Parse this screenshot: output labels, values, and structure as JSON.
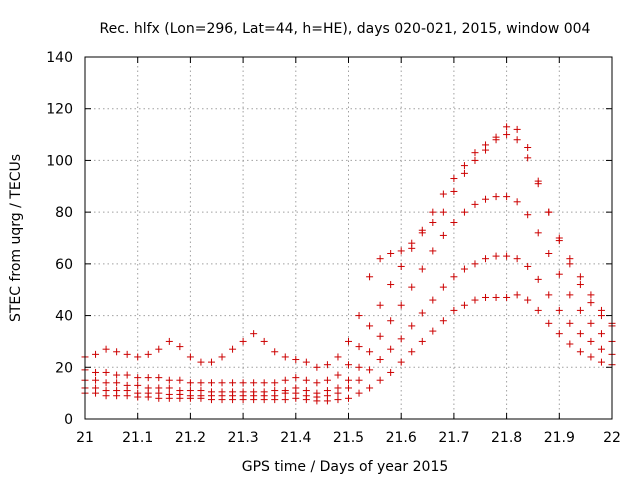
{
  "chart_data": {
    "type": "scatter",
    "title": "Rec. hlfx (Lon=296, Lat=44, h=HE), days 020-021, 2015, window 004",
    "xlabel": "GPS time / Days of year 2015",
    "ylabel": "STEC from uqrg / TECUs",
    "xlim": [
      21,
      22
    ],
    "ylim": [
      0,
      140
    ],
    "xticks": [
      "21",
      "21.1",
      "21.2",
      "21.3",
      "21.4",
      "21.5",
      "21.6",
      "21.7",
      "21.8",
      "21.9",
      "22"
    ],
    "yticks": [
      "0",
      "20",
      "40",
      "60",
      "80",
      "100",
      "120",
      "140"
    ],
    "grid": true,
    "marker": "+",
    "color": "#cc0000",
    "series": [
      {
        "x": [
          21.0,
          21.02,
          21.04,
          21.06,
          21.08,
          21.1,
          21.12,
          21.14,
          21.16,
          21.18,
          21.2,
          21.22,
          21.24,
          21.26,
          21.28,
          21.3,
          21.32,
          21.34,
          21.36,
          21.38,
          21.4,
          21.42,
          21.44,
          21.46,
          21.48,
          21.5,
          21.52,
          21.54,
          21.56,
          21.58,
          21.6,
          21.62,
          21.64,
          21.66,
          21.68,
          21.7,
          21.72,
          21.74,
          21.76,
          21.78,
          21.8,
          21.82,
          21.84,
          21.86,
          21.88,
          21.9,
          21.92,
          21.94,
          21.96,
          21.98,
          22.0
        ],
        "y": [
          10,
          10,
          9,
          9,
          9,
          8.5,
          8.5,
          8,
          8,
          8,
          8,
          8,
          7.5,
          7.5,
          7.5,
          7.5,
          7.5,
          7.5,
          7.5,
          7.5,
          8,
          7.5,
          7,
          7,
          7.5,
          8,
          10,
          12,
          15,
          18,
          22,
          26,
          30,
          34,
          38,
          42,
          44,
          46,
          47,
          47,
          47,
          48,
          46,
          42,
          37,
          33,
          29,
          26,
          24,
          22,
          21
        ]
      },
      {
        "x": [
          21.0,
          21.02,
          21.04,
          21.06,
          21.08,
          21.1,
          21.12,
          21.14,
          21.16,
          21.18,
          21.2,
          21.22,
          21.24,
          21.26,
          21.28,
          21.3,
          21.32,
          21.34,
          21.36,
          21.38,
          21.4,
          21.42,
          21.44,
          21.46,
          21.48,
          21.5,
          21.52,
          21.54,
          21.56,
          21.58,
          21.6,
          21.62,
          21.64,
          21.66,
          21.68,
          21.7,
          21.72,
          21.74,
          21.76,
          21.78,
          21.8,
          21.82,
          21.84,
          21.86,
          21.88,
          21.9,
          21.92,
          21.94,
          21.96,
          21.98,
          22.0
        ],
        "y": [
          12,
          12,
          11,
          11,
          11,
          10,
          10,
          10,
          9.5,
          9.5,
          9,
          9,
          9,
          9,
          9,
          9,
          9,
          9,
          9,
          10,
          10,
          9,
          8.5,
          9,
          10,
          12,
          15,
          19,
          23,
          27,
          31,
          36,
          41,
          46,
          51,
          55,
          58,
          60,
          62,
          63,
          63,
          62,
          59,
          54,
          48,
          42,
          37,
          33,
          30,
          27,
          25
        ]
      },
      {
        "x": [
          21.0,
          21.02,
          21.04,
          21.06,
          21.08,
          21.1,
          21.12,
          21.14,
          21.16,
          21.18,
          21.2,
          21.22,
          21.24,
          21.26,
          21.28,
          21.3,
          21.32,
          21.34,
          21.36,
          21.38,
          21.4,
          21.42,
          21.44,
          21.46,
          21.48,
          21.5,
          21.52,
          21.54,
          21.56,
          21.58,
          21.6,
          21.62,
          21.64,
          21.66,
          21.68,
          21.7,
          21.72,
          21.74,
          21.76,
          21.78,
          21.8,
          21.82,
          21.84,
          21.86,
          21.88,
          21.9,
          21.92,
          21.94,
          21.96,
          21.98,
          22.0
        ],
        "y": [
          15,
          15,
          14,
          14,
          13,
          13,
          12,
          12,
          12,
          11,
          11,
          11,
          10.5,
          10.5,
          10.5,
          10.5,
          10.5,
          10.5,
          11,
          11,
          12,
          11,
          10,
          11,
          12,
          15,
          20,
          26,
          32,
          38,
          44,
          51,
          58,
          65,
          71,
          76,
          80,
          83,
          85,
          86,
          86,
          84,
          79,
          72,
          64,
          56,
          48,
          42,
          37,
          33,
          30
        ]
      },
      {
        "x": [
          21.0,
          21.02,
          21.04,
          21.06,
          21.08,
          21.1,
          21.12,
          21.14,
          21.16,
          21.18,
          21.2,
          21.22,
          21.24,
          21.26,
          21.28,
          21.3,
          21.32,
          21.34,
          21.36,
          21.38,
          21.4,
          21.42,
          21.44,
          21.46,
          21.48,
          21.5,
          21.52,
          21.54,
          21.56,
          21.58,
          21.6,
          21.62,
          21.64,
          21.66,
          21.68,
          21.7,
          21.72,
          21.74,
          21.76,
          21.78,
          21.8,
          21.82,
          21.84,
          21.86,
          21.88,
          21.9,
          21.92,
          21.94,
          21.96,
          21.98,
          22.0
        ],
        "y": [
          19,
          18,
          18,
          17,
          17,
          16,
          16,
          16,
          15,
          15,
          14,
          14,
          14,
          14,
          14,
          14,
          14,
          14,
          14,
          15,
          16,
          15,
          14,
          15,
          17,
          21,
          28,
          36,
          44,
          52,
          59,
          66,
          73,
          80,
          87,
          93,
          98,
          103,
          106,
          109,
          110,
          108,
          101,
          91,
          80,
          69,
          60,
          52,
          45,
          40,
          36
        ]
      },
      {
        "x": [
          21.0,
          21.02,
          21.04,
          21.06,
          21.08,
          21.1,
          21.12,
          21.14,
          21.16,
          21.18,
          21.2,
          21.22,
          21.24,
          21.26,
          21.28,
          21.3,
          21.32,
          21.34,
          21.36,
          21.38,
          21.4,
          21.42,
          21.44,
          21.46,
          21.48,
          21.5,
          21.52,
          21.54,
          21.56,
          21.58,
          21.6,
          21.62,
          21.64,
          21.66,
          21.68,
          21.7,
          21.72,
          21.74,
          21.76,
          21.78,
          21.8,
          21.82,
          21.84,
          21.86,
          21.88,
          21.9,
          21.92,
          21.94,
          21.96,
          21.98,
          22.0
        ],
        "y": [
          24,
          25,
          27,
          26,
          25,
          24,
          25,
          27,
          30,
          28,
          24,
          22,
          22,
          24,
          27,
          30,
          33,
          30,
          26,
          24,
          23,
          22,
          20,
          21,
          24,
          30,
          40,
          55,
          62,
          64,
          65,
          68,
          72,
          76,
          80,
          88,
          95,
          100,
          104,
          108,
          113,
          112,
          105,
          92,
          80,
          70,
          62,
          55,
          48,
          42,
          37
        ]
      }
    ]
  }
}
